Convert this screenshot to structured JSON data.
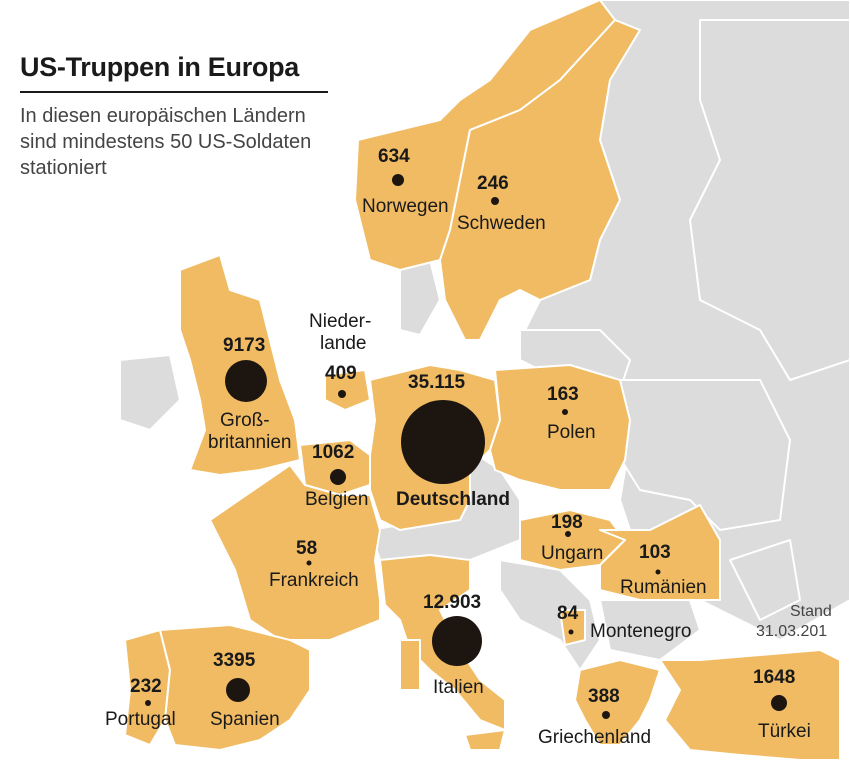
{
  "title": "US-Truppen in Europa",
  "subtitle": "In diesen europäischen Ländern sind mindestens 50 US-Soldaten stationiert",
  "footnote": {
    "line1": "Stand",
    "line2": "31.03.201"
  },
  "colors": {
    "highlight": "#f0bb63",
    "other_land": "#dcdcdc",
    "sea": "#ffffff",
    "bubble": "#1c1510"
  },
  "countries": [
    {
      "id": "norwegen",
      "name": "Norwegen",
      "troops": "634"
    },
    {
      "id": "schweden",
      "name": "Schweden",
      "troops": "246"
    },
    {
      "id": "grossbritannien",
      "name_line1": "Groß-",
      "name_line2": "britannien",
      "troops": "9173"
    },
    {
      "id": "niederlande",
      "name_line1": "Nieder-",
      "name_line2": "lande",
      "troops": "409"
    },
    {
      "id": "belgien",
      "name": "Belgien",
      "troops": "1062"
    },
    {
      "id": "deutschland",
      "name": "Deutschland",
      "troops": "35.115"
    },
    {
      "id": "polen",
      "name": "Polen",
      "troops": "163"
    },
    {
      "id": "frankreich",
      "name": "Frankreich",
      "troops": "58"
    },
    {
      "id": "ungarn",
      "name": "Ungarn",
      "troops": "198"
    },
    {
      "id": "rumaenien",
      "name": "Rumänien",
      "troops": "103"
    },
    {
      "id": "italien",
      "name": "Italien",
      "troops": "12.903"
    },
    {
      "id": "montenegro",
      "name": "Montenegro",
      "troops": "84"
    },
    {
      "id": "portugal",
      "name": "Portugal",
      "troops": "232"
    },
    {
      "id": "spanien",
      "name": "Spanien",
      "troops": "3395"
    },
    {
      "id": "griechenland",
      "name": "Griechenland",
      "troops": "388"
    },
    {
      "id": "tuerkei",
      "name": "Türkei",
      "troops": "1648"
    }
  ]
}
